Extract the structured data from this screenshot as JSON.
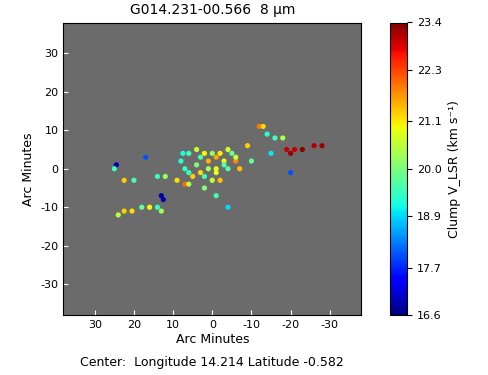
{
  "chart_data": {
    "type": "scatter",
    "title": "G014.231-00.566  8 µm",
    "x_label": "Arc Minutes",
    "y_label": "Arc Minutes",
    "annotations": [
      "Center:  Longitude 14.214 Latitude -0.582"
    ],
    "colorbar_label": "Clump V_LSR (km s⁻¹)",
    "colorbar_range": [
      16.6,
      23.4
    ],
    "colorbar_ticks": [
      16.6,
      17.7,
      18.9,
      20.0,
      21.1,
      22.3,
      23.4
    ],
    "x": [
      24.5,
      25,
      22.5,
      20,
      17,
      14,
      12,
      13,
      12.5,
      14,
      13,
      16,
      18,
      20.5,
      22.5,
      24,
      7.5,
      6,
      8,
      7,
      6,
      9,
      7,
      6,
      4,
      3,
      2,
      1,
      0,
      -1,
      -2,
      -3,
      -4,
      -5,
      -6,
      1,
      -1,
      2,
      3,
      0,
      -2,
      -4,
      4,
      5,
      -1,
      -3,
      -6,
      -7,
      -4,
      2,
      -1,
      -12,
      -13,
      -14,
      -16,
      -18,
      -15,
      -19,
      -20,
      -21,
      -23,
      -26,
      -28,
      -20,
      -9,
      -10
    ],
    "y": [
      1,
      0,
      -3,
      -3,
      3,
      -2,
      -2,
      -7,
      -8,
      -10,
      -11,
      -10,
      -10,
      -11,
      -11,
      -12,
      4,
      4,
      2,
      0,
      -1,
      -3,
      -4,
      -4,
      5,
      3,
      4,
      2,
      4,
      3,
      4,
      2,
      5,
      4,
      2,
      0,
      -1,
      -2,
      -1,
      -3,
      -3,
      0,
      1,
      -2,
      0,
      1,
      3,
      0,
      -10,
      -5,
      -7,
      11,
      11,
      9,
      8,
      8,
      4,
      5,
      4,
      5,
      5,
      6,
      6,
      -1,
      6,
      2
    ],
    "values": [
      16.9,
      19.5,
      21.3,
      19.6,
      18.0,
      19.4,
      20.2,
      16.8,
      16.9,
      19.4,
      20.3,
      21.0,
      19.8,
      21.2,
      21.3,
      20.5,
      19.2,
      19.5,
      19.3,
      19.4,
      19.4,
      21.2,
      22.0,
      20.5,
      20.6,
      19.6,
      21.0,
      21.5,
      20.2,
      21.6,
      21.1,
      20.9,
      20.7,
      19.8,
      21.8,
      20.3,
      20.8,
      19.5,
      21.2,
      20.6,
      21.4,
      19.7,
      20.0,
      21.3,
      20.9,
      19.6,
      20.6,
      21.4,
      18.9,
      20.1,
      19.5,
      21.9,
      21.2,
      19.3,
      19.5,
      20.4,
      19.0,
      23.0,
      23.2,
      23.0,
      23.3,
      23.1,
      23.2,
      18.0,
      21.3,
      19.8
    ],
    "xlim": [
      38,
      -38
    ],
    "xticks": [
      30,
      20,
      10,
      0,
      -10,
      -20,
      -30
    ],
    "ylim": [
      -38,
      38
    ],
    "yticks": [
      -30,
      -20,
      -10,
      0,
      10,
      20,
      30
    ]
  }
}
